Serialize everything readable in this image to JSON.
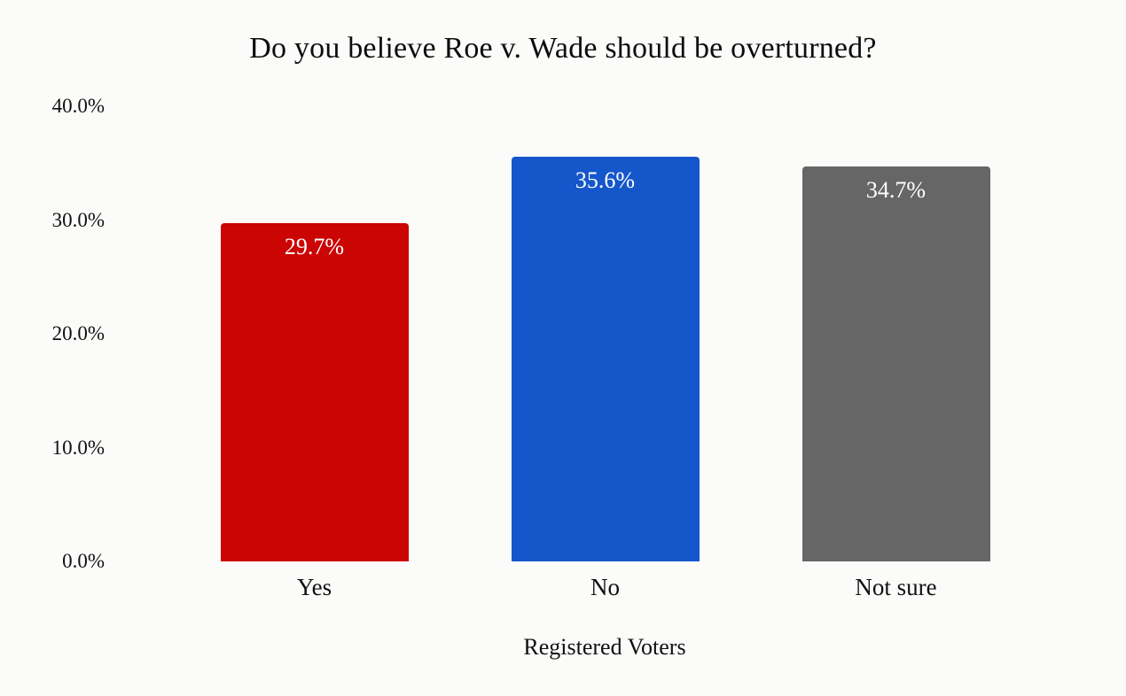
{
  "page": {
    "background": "#fbfbfa"
  },
  "chart_data": {
    "type": "bar",
    "title": "Do you believe Roe v. Wade should be overturned?",
    "xlabel": "Registered Voters",
    "ylabel": "",
    "categories": [
      "Yes",
      "No",
      "Not sure"
    ],
    "values": [
      29.7,
      35.6,
      34.7
    ],
    "value_labels": [
      "29.7%",
      "35.6%",
      "34.7%"
    ],
    "bar_colors": [
      "#cb0404",
      "#1556cb",
      "#666666"
    ],
    "value_label_color": "#ffffff",
    "ylim": [
      0,
      40
    ],
    "yticks": [
      0,
      10,
      20,
      30,
      40
    ],
    "ytick_labels": [
      "0.0%",
      "10.0%",
      "20.0%",
      "30.0%",
      "40.0%"
    ],
    "grid": false,
    "legend": null
  }
}
